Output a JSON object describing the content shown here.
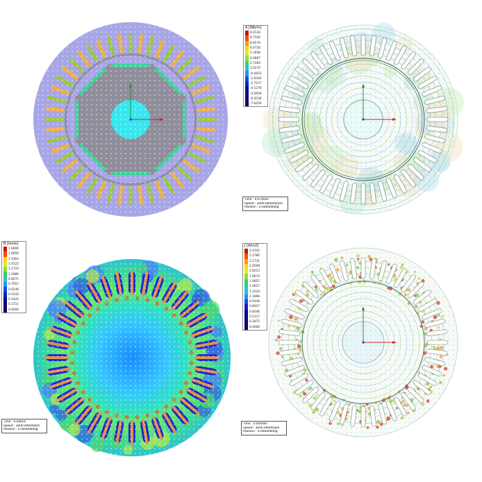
{
  "panels": [
    {
      "id": "mesh",
      "type": "mesh",
      "colors": {
        "bg": "#a8a6e6",
        "gray": "#8f8e9a",
        "shaft": "#37e7ef",
        "coil_a": "#f0b040",
        "coil_b": "#9ac83a",
        "magnet": "#3ed39a"
      }
    },
    {
      "id": "flux-lines",
      "type": "flux",
      "legend": {
        "title": "A [Wb/m]",
        "values": [
          "9.0116",
          "6.7326",
          "8.6576",
          "6.6726",
          "5.3036",
          "4.6867",
          "2.7283",
          "1.6272",
          "-0.4833",
          "-1.6424",
          "-2.7157",
          "-4.1276",
          "-5.0956",
          "-6.4536",
          "-7.6250"
        ]
      },
      "info": [
        "Time : 0.07000s",
        "Speed : 3000.000000rpm",
        "Position : 0.000000deg"
      ]
    },
    {
      "id": "flux-density",
      "type": "density",
      "legend": {
        "title": "B [tesla]",
        "values": [
          "1.8000",
          "1.6850",
          "1.5463",
          "1.4122",
          "1.2723",
          "1.1880",
          "0.8071",
          "0.7957",
          "0.6246",
          "0.5243",
          "0.3425",
          "0.1711",
          "0.0000"
        ]
      },
      "info": [
        "Time : 0.0400s",
        "Speed : 3000.00000rpm",
        "Position : 0.000000deg"
      ]
    },
    {
      "id": "current-density",
      "type": "current",
      "legend": {
        "title": "J [A/m2]",
        "values": [
          "2.4102",
          "2.2780",
          "2.1731",
          "2.0508",
          "1.8523",
          "1.8074",
          "1.6857",
          "1.4657",
          "1.3224",
          "1.1896",
          "0.9349",
          "0.8017",
          "0.6046",
          "0.5117",
          "0.2875",
          "0.0000"
        ]
      },
      "info": [
        "Time : 0.00400s",
        "Speed : 3000.00000rpm",
        "Position : 0.000000deg"
      ]
    }
  ]
}
